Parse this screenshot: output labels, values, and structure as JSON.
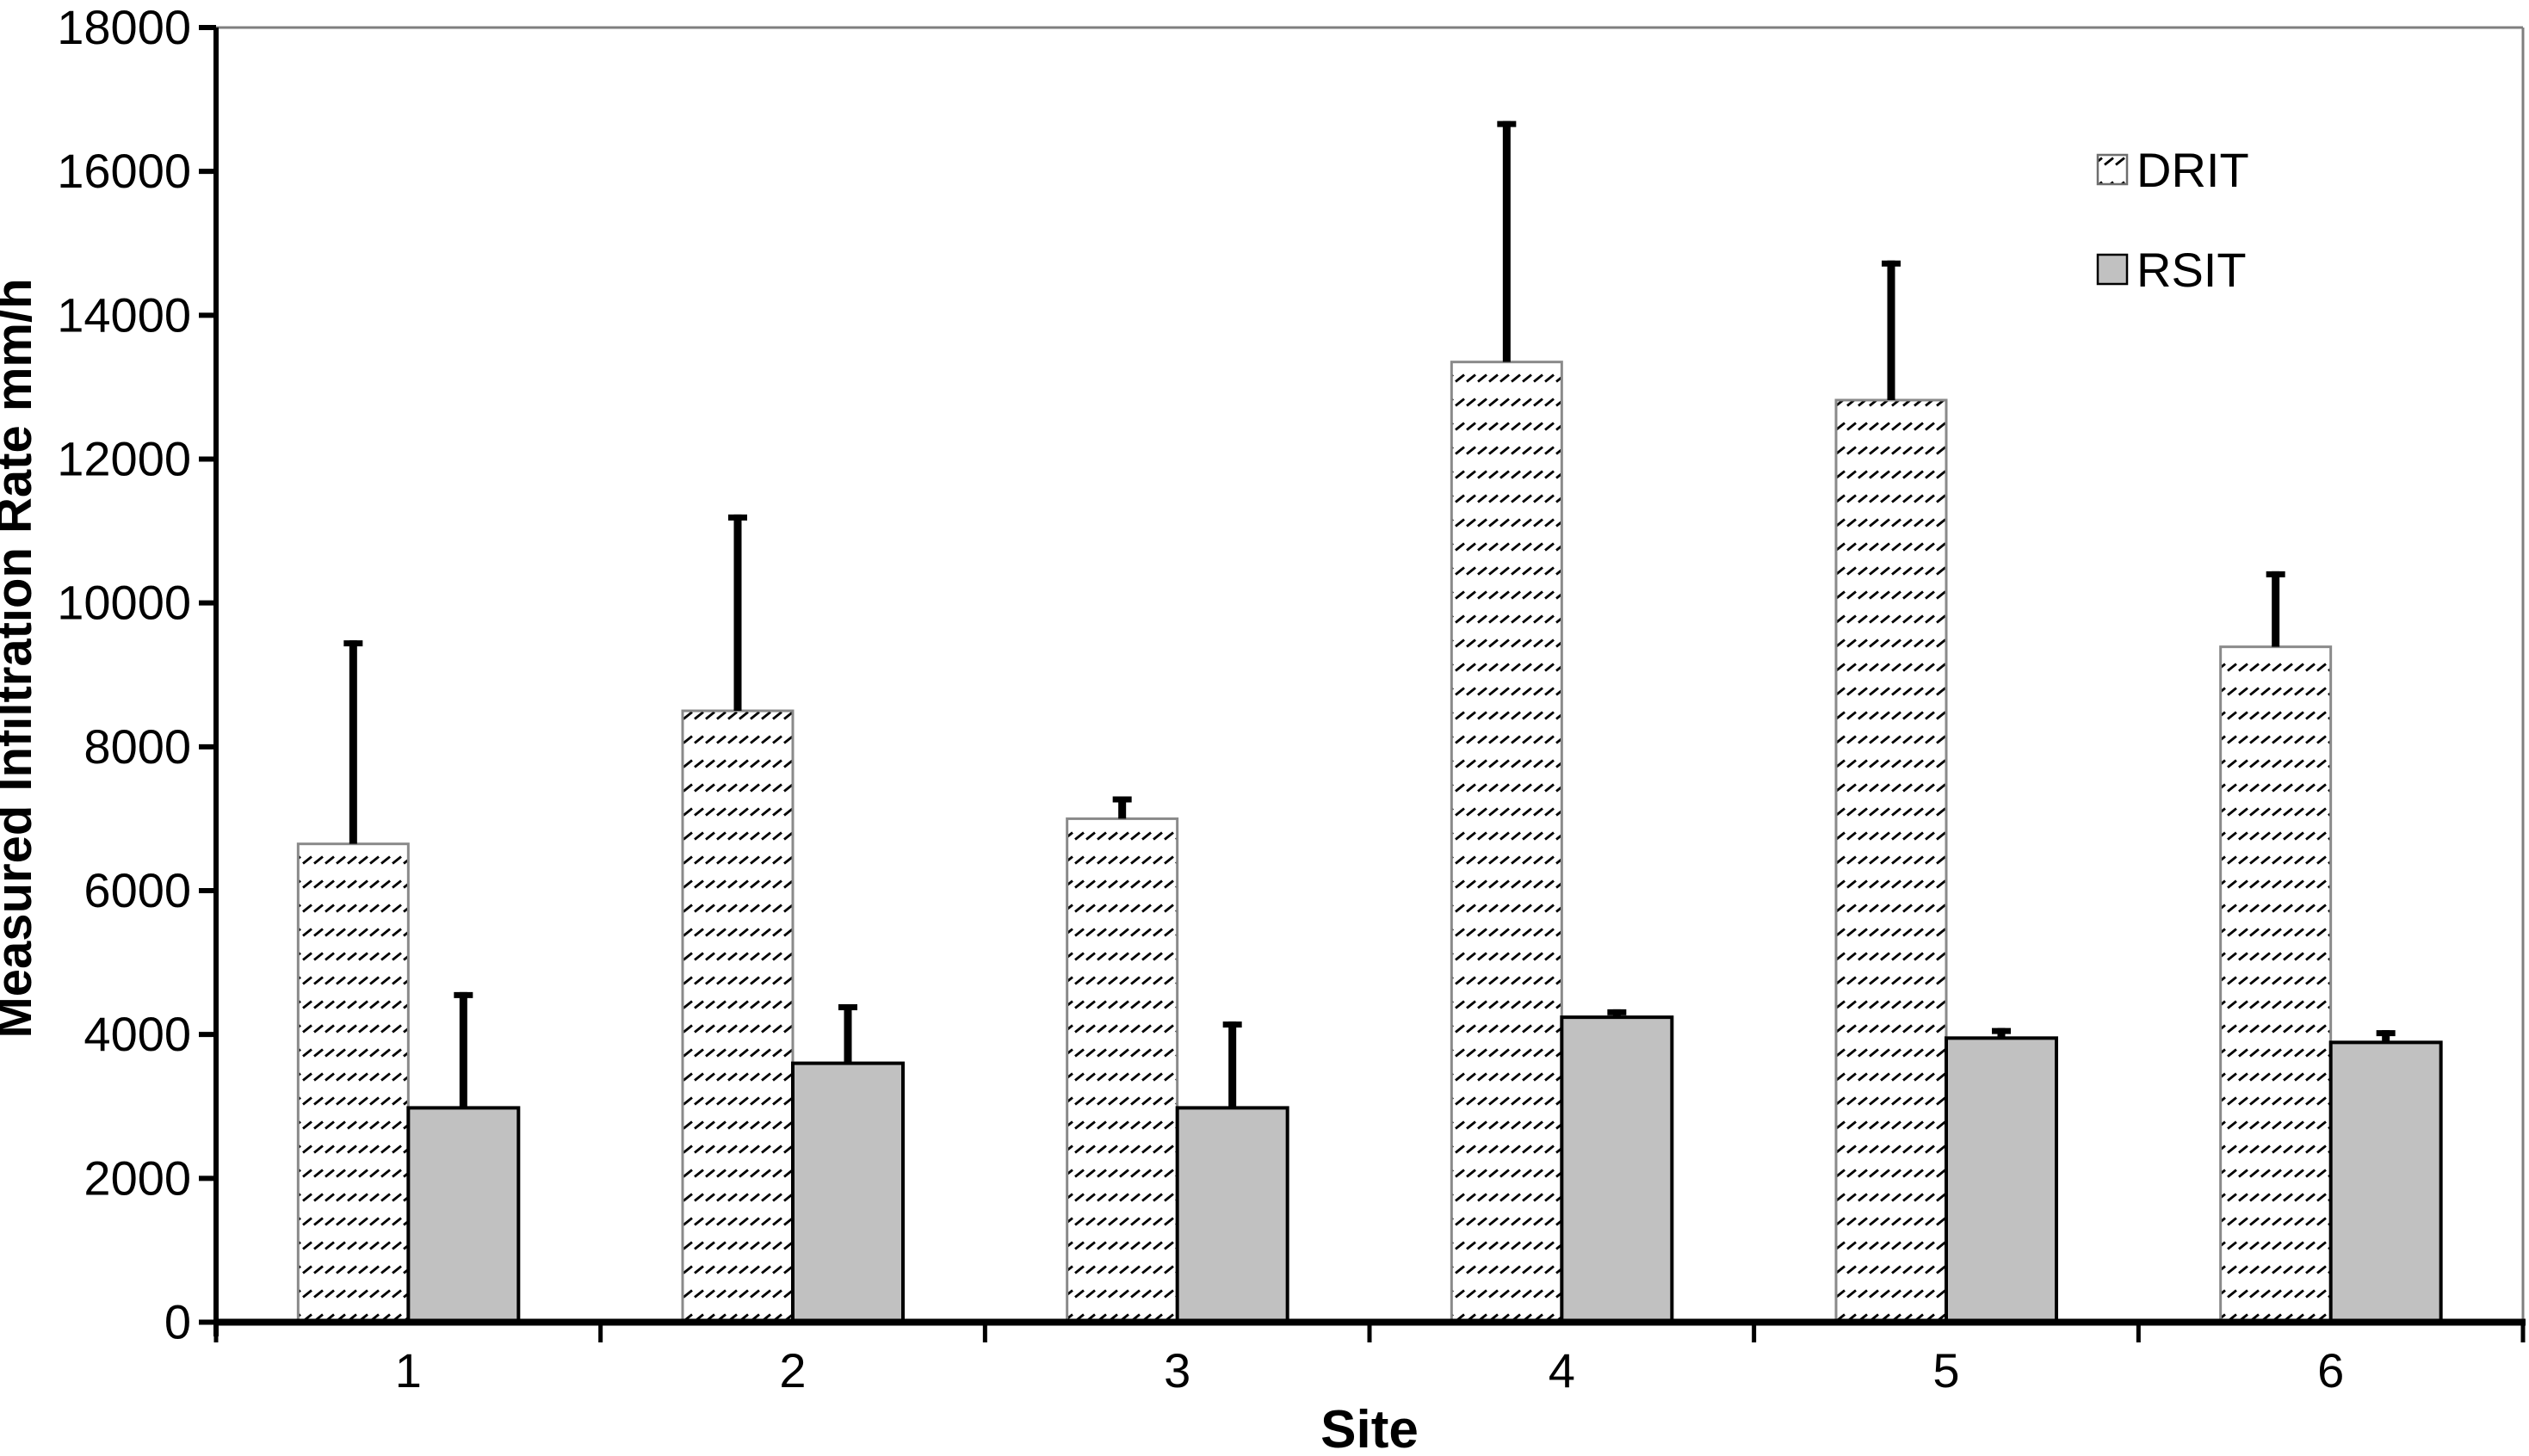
{
  "figure": {
    "legend": {
      "items": [
        {
          "label": "DRIT",
          "swatch": "hatched-white"
        },
        {
          "label": "RSIT",
          "swatch": "solid-gray"
        }
      ]
    }
  },
  "chart_data": {
    "type": "bar",
    "title": "",
    "xlabel": "Site",
    "ylabel": "Measured Infiltration Rate mm/h",
    "categories": [
      "1",
      "2",
      "3",
      "4",
      "5",
      "6"
    ],
    "series": [
      {
        "name": "DRIT",
        "style": "hatched",
        "values": [
          6650,
          8500,
          7000,
          13350,
          12820,
          9390
        ],
        "error_upper": [
          9480,
          11230,
          7310,
          16700,
          14760,
          10440
        ]
      },
      {
        "name": "RSIT",
        "style": "solid",
        "values": [
          2980,
          3600,
          2980,
          4240,
          3950,
          3890
        ],
        "error_upper": [
          4590,
          4420,
          4180,
          4350,
          4090,
          4060
        ]
      }
    ],
    "ylim": [
      0,
      18000
    ],
    "ytick_step": 2000,
    "grid": false,
    "legend_position": "upper-right",
    "error_bars": "upper-only",
    "colors": {
      "background": "#ffffff",
      "rsit_fill": "#c1c1c1",
      "rsit_border": "#000000",
      "drit_fill": "#ffffff",
      "drit_hatch": "#000000",
      "drit_border": "#8a8a8a",
      "axis": "#000000",
      "frame": "#7f7f7f",
      "error_bar": "#000000",
      "text": "#000000"
    }
  }
}
